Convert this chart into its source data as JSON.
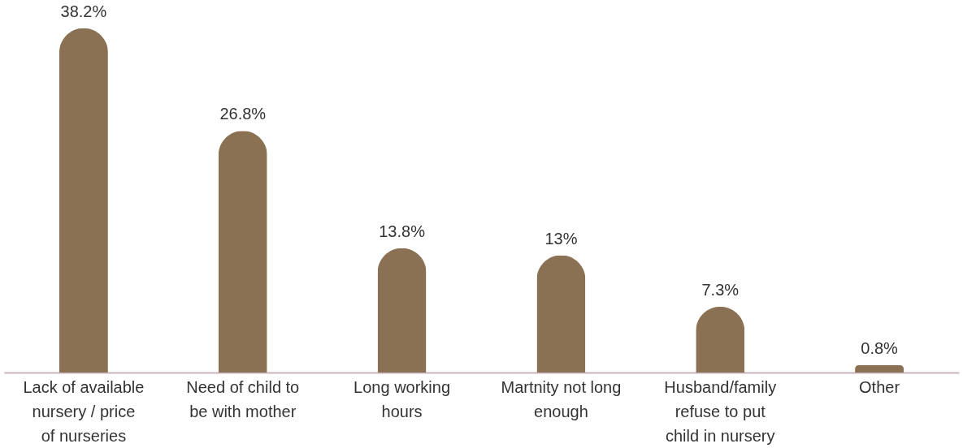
{
  "chart_data": {
    "type": "bar",
    "categories": [
      "Lack of available nursery / price of nurseries",
      "Need of child to be with mother",
      "Long working hours",
      "Martnity not long enough",
      "Husband/family refuse to put child in nursery",
      "Other"
    ],
    "values": [
      38.2,
      26.8,
      13.8,
      13,
      7.3,
      0.8
    ],
    "value_labels": [
      "38.2%",
      "26.8%",
      "13.8%",
      "13%",
      "7.3%",
      "0.8%"
    ],
    "color": "#8b7153",
    "grid": false
  }
}
